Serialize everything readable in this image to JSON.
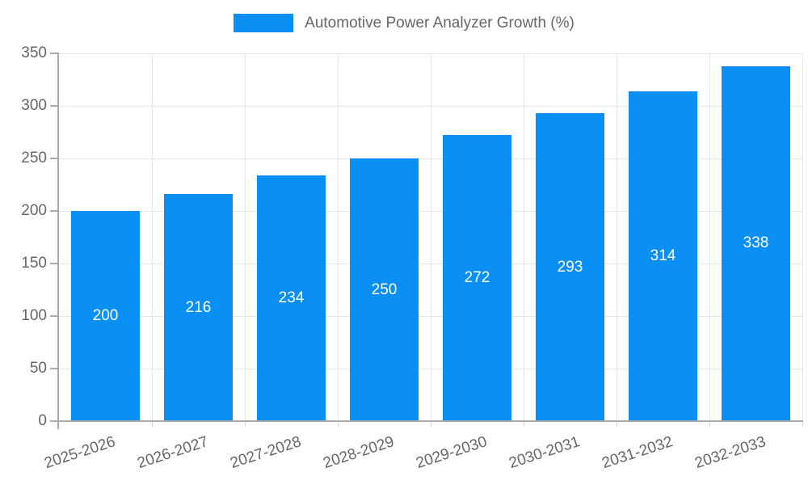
{
  "legend": {
    "label": "Automotive Power Analyzer Growth (%)"
  },
  "colors": {
    "bar": "#0a90f5",
    "grid_line": "#e6e6e6",
    "axis_line": "#ababab",
    "minor_tick": "#d6d6d6",
    "tick_text": "#666666",
    "bar_label_text": "#ffffff",
    "background": "#ffffff"
  },
  "chart_data": {
    "type": "bar",
    "title": "Automotive Power Analyzer Growth (%)",
    "categories": [
      "2025-2026",
      "2026-2027",
      "2027-2028",
      "2028-2029",
      "2029-2030",
      "2030-2031",
      "2031-2032",
      "2032-2033"
    ],
    "values": [
      200,
      216,
      234,
      250,
      272,
      293,
      314,
      338
    ],
    "value_label_position": "inside-center",
    "xlabel": "",
    "ylabel": "",
    "ylim": [
      0,
      350
    ],
    "ytick_step": 50,
    "ytick_labels": [
      "0",
      "50",
      "100",
      "150",
      "200",
      "250",
      "300",
      "350"
    ],
    "grid": true,
    "legend_position": "top-center",
    "x_label_rotation_deg": -18
  }
}
